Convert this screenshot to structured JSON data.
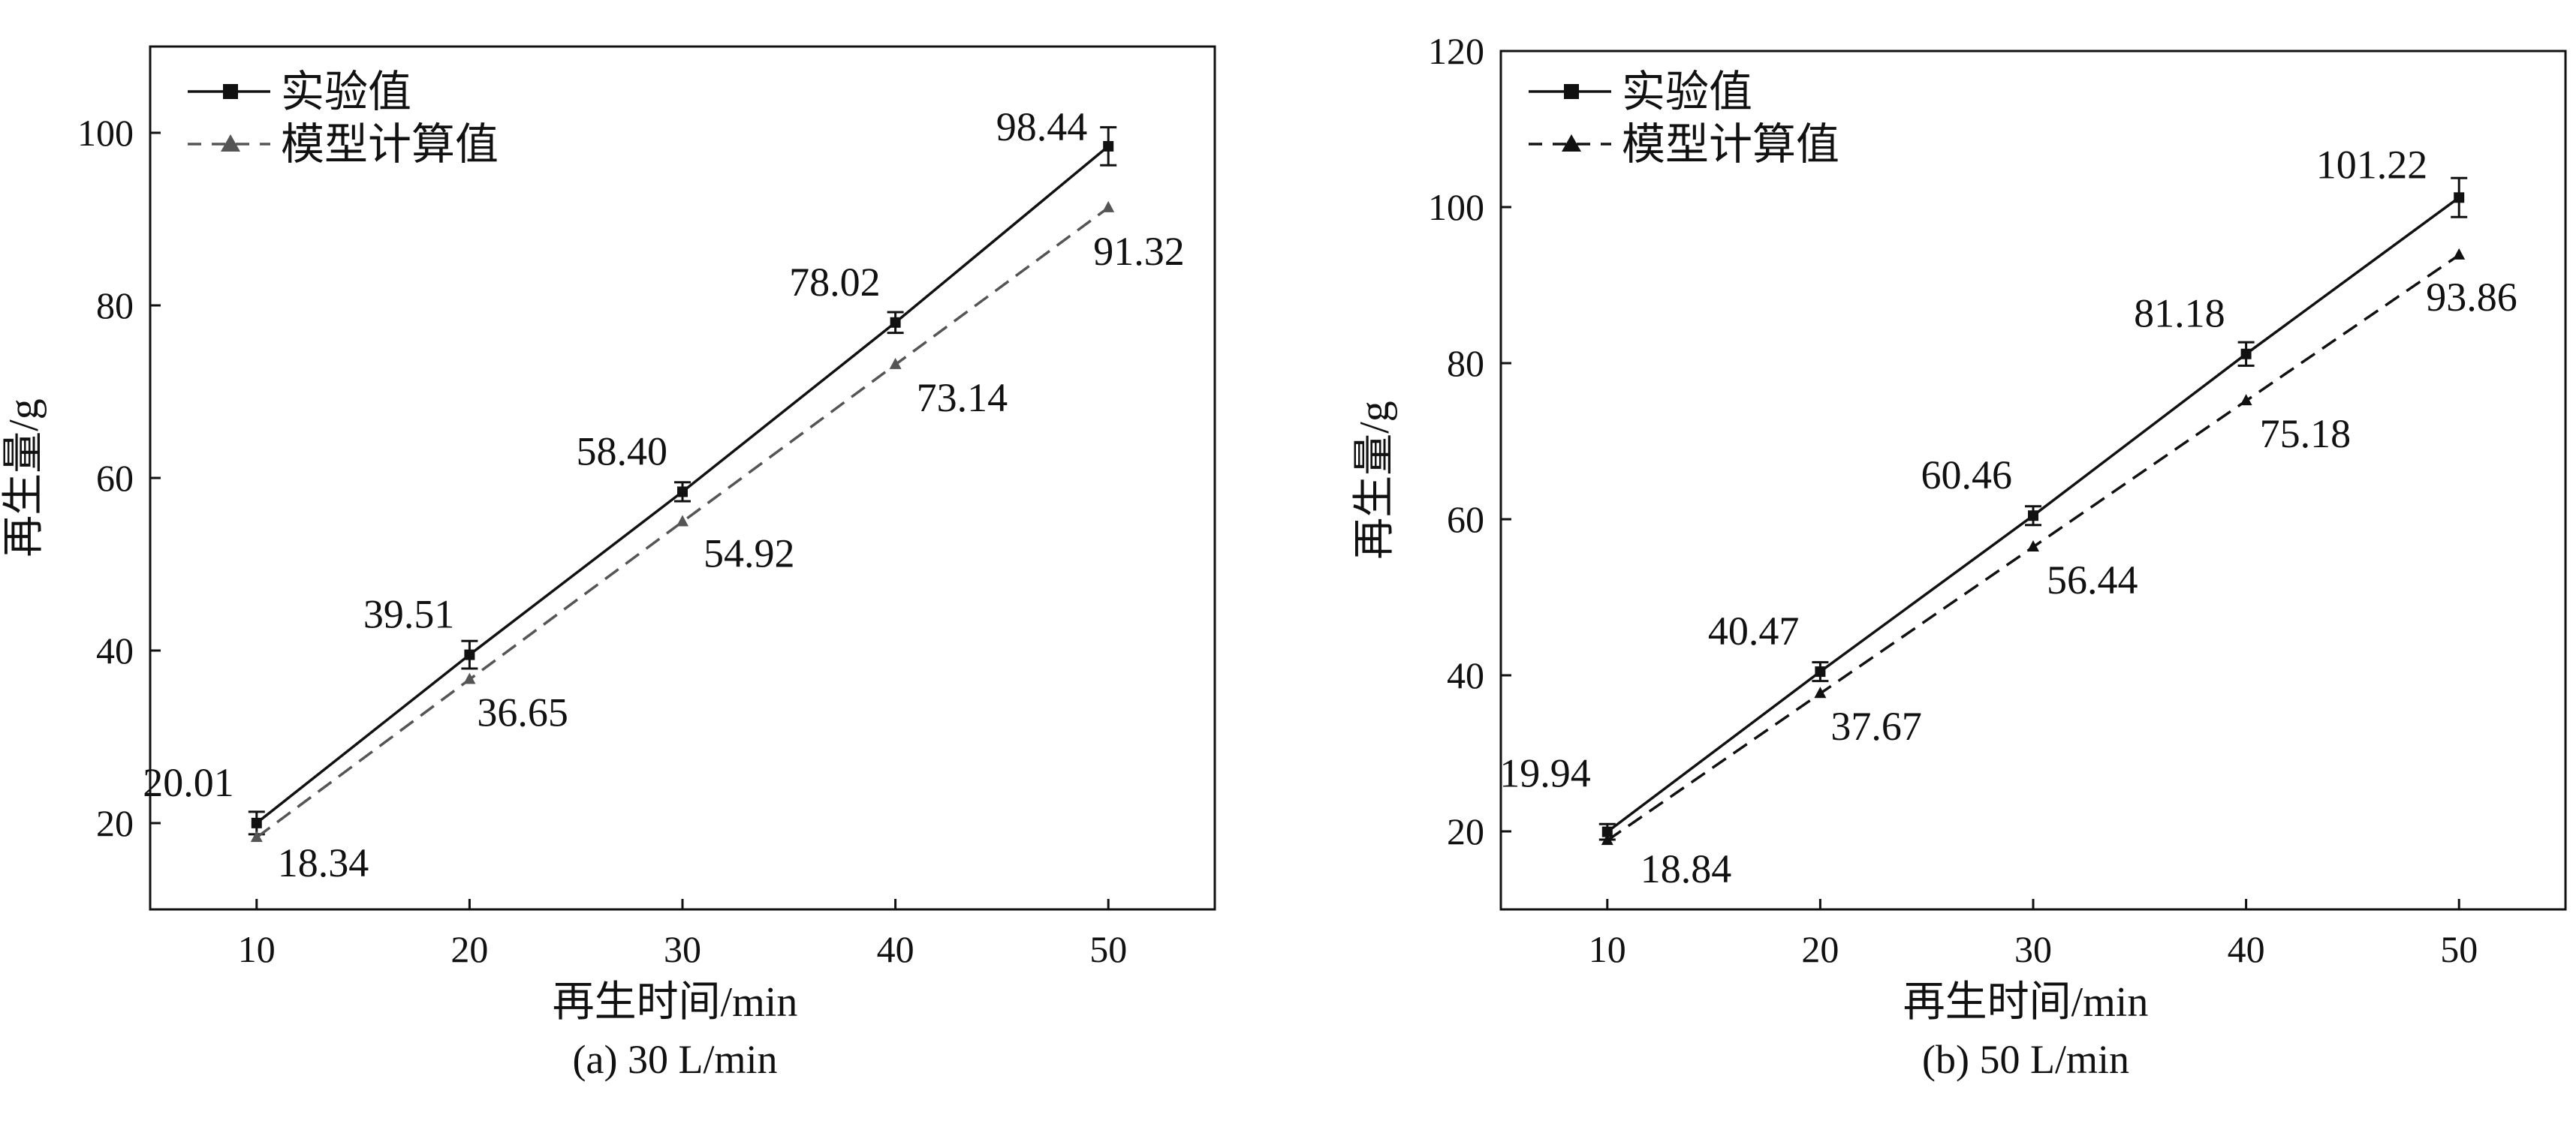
{
  "chart_data": [
    {
      "type": "line",
      "caption": "(a) 30 L/min",
      "xlabel": "再生时间/min",
      "ylabel": "再生量/g",
      "xlim": [
        5,
        55
      ],
      "ylim": [
        10,
        110
      ],
      "xticks": [
        10,
        20,
        30,
        40,
        50
      ],
      "yticks": [
        20,
        40,
        60,
        80,
        100
      ],
      "grid": false,
      "legend_position": "top-left",
      "categories": [
        10,
        20,
        30,
        40,
        50
      ],
      "series": [
        {
          "name": "实验值",
          "marker": "square",
          "line_style": "solid",
          "color": "#111111",
          "values": [
            20.01,
            39.51,
            58.4,
            78.02,
            98.44
          ],
          "error": [
            1.3,
            1.6,
            1.1,
            1.2,
            2.2
          ],
          "labels": [
            "20.01",
            "39.51",
            "58.40",
            "78.02",
            "98.44"
          ]
        },
        {
          "name": "模型计算值",
          "marker": "triangle",
          "line_style": "dashed",
          "color": "#555555",
          "values": [
            18.34,
            36.65,
            54.92,
            73.14,
            91.32
          ],
          "labels": [
            "18.34",
            "36.65",
            "54.92",
            "73.14",
            "91.32"
          ]
        }
      ]
    },
    {
      "type": "line",
      "caption": "(b) 50 L/min",
      "xlabel": "再生时间/min",
      "ylabel": "再生量/g",
      "xlim": [
        5,
        55
      ],
      "ylim": [
        10,
        120
      ],
      "xticks": [
        10,
        20,
        30,
        40,
        50
      ],
      "yticks": [
        20,
        40,
        60,
        80,
        100,
        120
      ],
      "grid": false,
      "legend_position": "top-left",
      "categories": [
        10,
        20,
        30,
        40,
        50
      ],
      "series": [
        {
          "name": "实验值",
          "marker": "square",
          "line_style": "solid",
          "color": "#111111",
          "values": [
            19.94,
            40.47,
            60.46,
            81.18,
            101.22
          ],
          "error": [
            1.0,
            1.2,
            1.2,
            1.5,
            2.5
          ],
          "labels": [
            "19.94",
            "40.47",
            "60.46",
            "81.18",
            "101.22"
          ]
        },
        {
          "name": "模型计算值",
          "marker": "triangle",
          "line_style": "dashed",
          "color": "#111111",
          "values": [
            18.84,
            37.67,
            56.44,
            75.18,
            93.86
          ],
          "labels": [
            "18.84",
            "37.67",
            "56.44",
            "75.18",
            "93.86"
          ]
        }
      ]
    }
  ]
}
